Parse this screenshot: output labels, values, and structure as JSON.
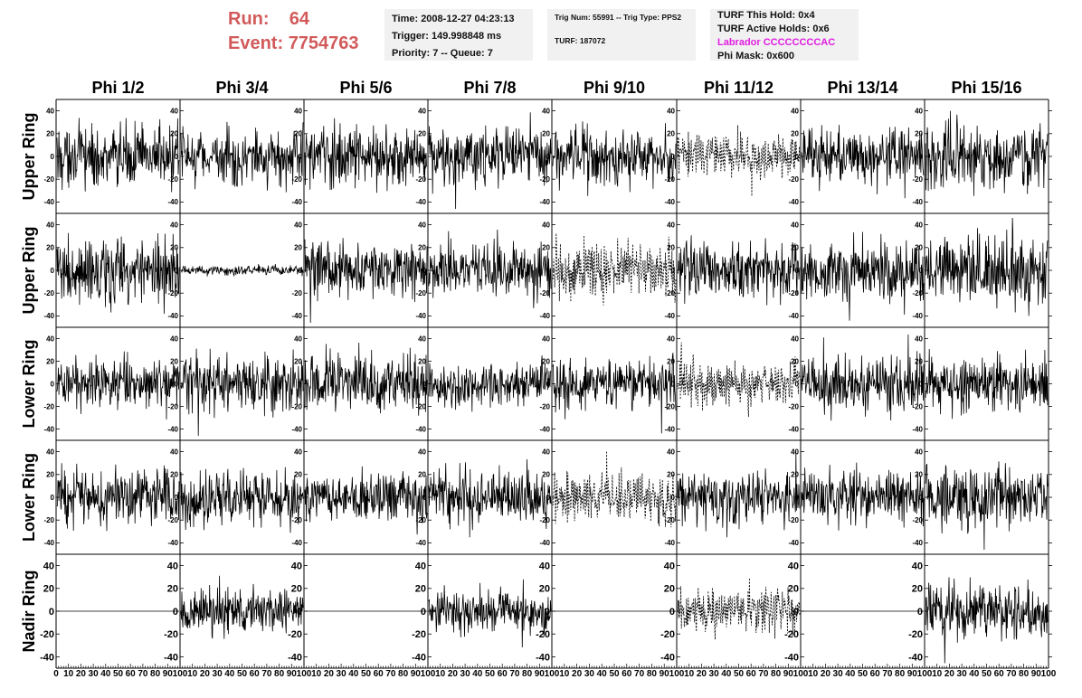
{
  "header": {
    "run_label": "Run:",
    "run_value": "64",
    "event_label": "Event:",
    "event_value": "7754763",
    "time": "Time: 2008-12-27 04:23:13",
    "trigger": "Trigger: 149.998848 ms",
    "priority": "Priority: 7 -- Queue: 7",
    "trig_num": "Trig Num: 55991 -- Trig Type: PPS2",
    "turf": "TURF: 187072",
    "turf_this_hold": "TURF This Hold: 0x4",
    "turf_active_holds": "TURF Active Holds: 0x6",
    "labrador": "Labrador CCCCCCCCAC",
    "phi_mask": "Phi Mask: 0x600"
  },
  "colors": {
    "run_text": "#d25a5a",
    "labrador_text": "#e01ee0",
    "info_bg": "#f1f1f1"
  },
  "columns": [
    "Phi 1/2",
    "Phi 3/4",
    "Phi 5/6",
    "Phi 7/8",
    "Phi 9/10",
    "Phi 11/12",
    "Phi 13/14",
    "Phi 15/16"
  ],
  "rows": [
    "Upper Ring",
    "Upper Ring",
    "Lower Ring",
    "Lower Ring",
    "Nadir Ring"
  ],
  "y_ticks": [
    "40",
    "20",
    "0",
    "-20",
    "-40"
  ],
  "x_tick_labels_first": [
    "0",
    "10",
    "20",
    "30",
    "40",
    "50",
    "60",
    "70",
    "80",
    "90",
    "100"
  ],
  "x_tick_labels_other": [
    "10",
    "20",
    "30",
    "40",
    "50",
    "60",
    "70",
    "80",
    "90",
    "100"
  ],
  "chart_data": {
    "type": "line",
    "ylim": [
      -50,
      50
    ],
    "xlim": [
      0,
      100
    ],
    "grid": false,
    "panels": [
      {
        "row": 0,
        "col": 0,
        "style": "solid",
        "amplitude": 20
      },
      {
        "row": 0,
        "col": 1,
        "style": "solid",
        "amplitude": 18
      },
      {
        "row": 0,
        "col": 2,
        "style": "solid",
        "amplitude": 20
      },
      {
        "row": 0,
        "col": 3,
        "style": "solid",
        "amplitude": 20
      },
      {
        "row": 0,
        "col": 4,
        "style": "solid",
        "amplitude": 18
      },
      {
        "row": 0,
        "col": 5,
        "style": "dotted",
        "amplitude": 14
      },
      {
        "row": 0,
        "col": 6,
        "style": "solid",
        "amplitude": 18
      },
      {
        "row": 0,
        "col": 7,
        "style": "solid",
        "amplitude": 22
      },
      {
        "row": 1,
        "col": 0,
        "style": "solid",
        "amplitude": 22
      },
      {
        "row": 1,
        "col": 1,
        "style": "solid",
        "amplitude": 3
      },
      {
        "row": 1,
        "col": 2,
        "style": "solid",
        "amplitude": 18
      },
      {
        "row": 1,
        "col": 3,
        "style": "solid",
        "amplitude": 18
      },
      {
        "row": 1,
        "col": 4,
        "style": "dotted",
        "amplitude": 18
      },
      {
        "row": 1,
        "col": 5,
        "style": "solid",
        "amplitude": 18
      },
      {
        "row": 1,
        "col": 6,
        "style": "solid",
        "amplitude": 18
      },
      {
        "row": 1,
        "col": 7,
        "style": "solid",
        "amplitude": 22
      },
      {
        "row": 2,
        "col": 0,
        "style": "solid",
        "amplitude": 16
      },
      {
        "row": 2,
        "col": 1,
        "style": "solid",
        "amplitude": 18
      },
      {
        "row": 2,
        "col": 2,
        "style": "solid",
        "amplitude": 20
      },
      {
        "row": 2,
        "col": 3,
        "style": "solid",
        "amplitude": 15
      },
      {
        "row": 2,
        "col": 4,
        "style": "solid",
        "amplitude": 17
      },
      {
        "row": 2,
        "col": 5,
        "style": "dotted",
        "amplitude": 14
      },
      {
        "row": 2,
        "col": 6,
        "style": "solid",
        "amplitude": 18
      },
      {
        "row": 2,
        "col": 7,
        "style": "solid",
        "amplitude": 17
      },
      {
        "row": 3,
        "col": 0,
        "style": "solid",
        "amplitude": 20
      },
      {
        "row": 3,
        "col": 1,
        "style": "solid",
        "amplitude": 18
      },
      {
        "row": 3,
        "col": 2,
        "style": "solid",
        "amplitude": 16
      },
      {
        "row": 3,
        "col": 3,
        "style": "solid",
        "amplitude": 18
      },
      {
        "row": 3,
        "col": 4,
        "style": "dotted",
        "amplitude": 16
      },
      {
        "row": 3,
        "col": 5,
        "style": "solid",
        "amplitude": 17
      },
      {
        "row": 3,
        "col": 6,
        "style": "solid",
        "amplitude": 17
      },
      {
        "row": 3,
        "col": 7,
        "style": "solid",
        "amplitude": 20
      },
      {
        "row": 4,
        "col": 0,
        "style": "flat",
        "amplitude": 0
      },
      {
        "row": 4,
        "col": 1,
        "style": "solid",
        "amplitude": 14
      },
      {
        "row": 4,
        "col": 2,
        "style": "flat",
        "amplitude": 0
      },
      {
        "row": 4,
        "col": 3,
        "style": "solid",
        "amplitude": 14
      },
      {
        "row": 4,
        "col": 4,
        "style": "flat",
        "amplitude": 0
      },
      {
        "row": 4,
        "col": 5,
        "style": "dotted",
        "amplitude": 14
      },
      {
        "row": 4,
        "col": 6,
        "style": "flat",
        "amplitude": 0
      },
      {
        "row": 4,
        "col": 7,
        "style": "solid",
        "amplitude": 18
      }
    ]
  }
}
